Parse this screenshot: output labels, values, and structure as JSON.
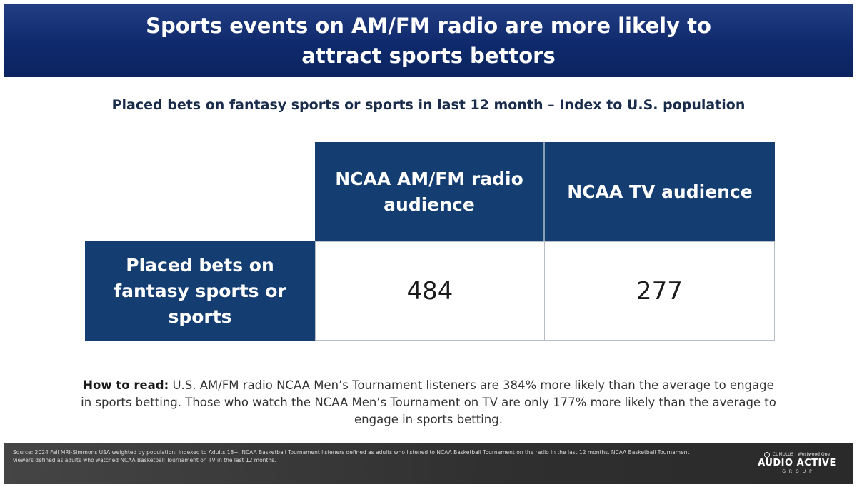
{
  "title": "Sports events on AM/FM radio are more likely to attract sports bettors",
  "subtitle": "Placed bets on fantasy sports or sports in last 12 month – Index to U.S. population",
  "chart_data": {
    "type": "table",
    "columns": [
      "NCAA AM/FM radio audience",
      "NCAA TV audience"
    ],
    "rows": [
      {
        "label": "Placed bets on fantasy sports or sports",
        "values": [
          484,
          277
        ]
      }
    ]
  },
  "how_to_read": {
    "lead": "How to read:",
    "text": " U.S. AM/FM radio NCAA Men’s Tournament listeners are 384% more likely than the average to engage in sports betting. Those who watch the NCAA Men’s Tournament on TV are only 177% more likely than the average to engage in sports betting."
  },
  "footer": {
    "source": "Source: 2024 Fall MRI-Simmons USA weighted by population. Indexed to Adults 18+. NCAA Basketball Tournament listeners defined as adults who listened to NCAA Basketball Tournament on the radio in the last 12 months. NCAA Basketball Tournament viewers defined as adults who watched NCAA Basketball Tournament on TV in the last 12 months.",
    "logo_partners": "CUMULUS | Westwood One",
    "logo_main": "AUDIO ACTIVE",
    "logo_sub": "GROUP"
  },
  "colors": {
    "banner": "#0f2a6c",
    "table_header": "#143d72",
    "footer": "#2f2f2f"
  }
}
